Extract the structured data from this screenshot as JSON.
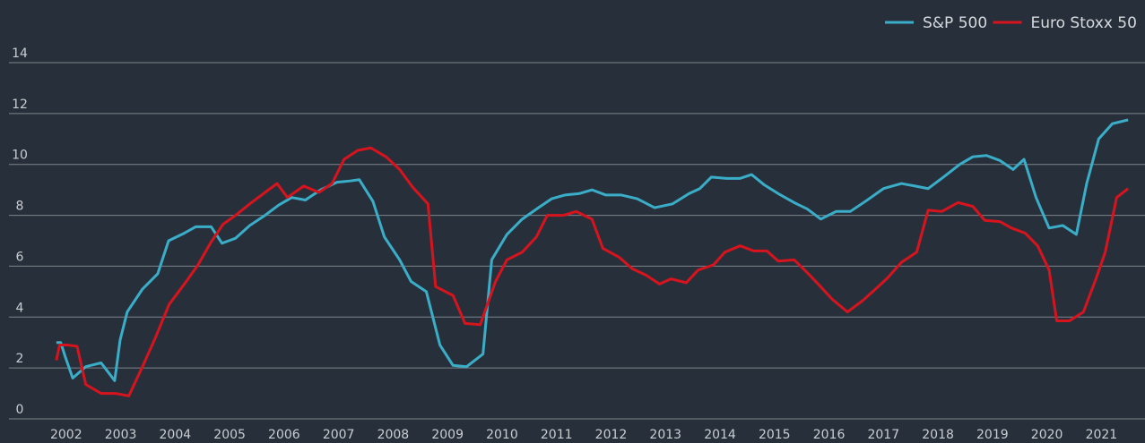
{
  "chart_data": {
    "type": "line",
    "xlim": [
      2000.95,
      2021.8
    ],
    "xticks": [
      2002,
      2003,
      2004,
      2005,
      2006,
      2007,
      2008,
      2009,
      2010,
      2011,
      2012,
      2013,
      2014,
      2015,
      2016,
      2017,
      2018,
      2019,
      2020,
      2021
    ],
    "ylim": [
      0,
      14
    ],
    "yticks": [
      0,
      2,
      4,
      6,
      8,
      10,
      12,
      14
    ],
    "grid": true,
    "legend": "top-right",
    "series": [
      {
        "name": "S&P 500",
        "color": "#3aaec8",
        "x": [
          2001.82,
          2001.9,
          2001.98,
          2002.12,
          2002.36,
          2002.64,
          2002.89,
          2002.99,
          2003.12,
          2003.4,
          2003.68,
          2003.88,
          2004.17,
          2004.38,
          2004.66,
          2004.86,
          2005.11,
          2005.37,
          2005.65,
          2005.9,
          2006.14,
          2006.39,
          2006.67,
          2006.97,
          2007.21,
          2007.38,
          2007.63,
          2007.84,
          2008.12,
          2008.33,
          2008.61,
          2008.86,
          2009.1,
          2009.35,
          2009.65,
          2009.81,
          2010.09,
          2010.37,
          2010.67,
          2010.91,
          2011.16,
          2011.41,
          2011.65,
          2011.9,
          2012.18,
          2012.48,
          2012.8,
          2013.13,
          2013.43,
          2013.63,
          2013.84,
          2014.12,
          2014.37,
          2014.58,
          2014.81,
          2015.07,
          2015.36,
          2015.6,
          2015.85,
          2016.13,
          2016.39,
          2016.67,
          2017.0,
          2017.33,
          2017.58,
          2017.82,
          2018.1,
          2018.4,
          2018.64,
          2018.89,
          2019.14,
          2019.38,
          2019.58,
          2019.8,
          2020.04,
          2020.29,
          2020.54,
          2020.73,
          2020.95,
          2021.2,
          2021.49
        ],
        "values": [
          3.0,
          3.0,
          2.46,
          1.6,
          2.05,
          2.2,
          1.5,
          3.1,
          4.2,
          5.1,
          5.7,
          7.0,
          7.3,
          7.55,
          7.55,
          6.9,
          7.1,
          7.6,
          8.0,
          8.4,
          8.7,
          8.6,
          9.0,
          9.3,
          9.35,
          9.4,
          8.55,
          7.15,
          6.25,
          5.4,
          5.0,
          2.9,
          2.1,
          2.05,
          2.55,
          6.25,
          7.25,
          7.85,
          8.3,
          8.65,
          8.8,
          8.85,
          9.0,
          8.8,
          8.8,
          8.65,
          8.3,
          8.45,
          8.85,
          9.05,
          9.5,
          9.45,
          9.45,
          9.6,
          9.2,
          8.85,
          8.5,
          8.25,
          7.85,
          8.15,
          8.15,
          8.55,
          9.05,
          9.25,
          9.15,
          9.05,
          9.5,
          10.0,
          10.3,
          10.35,
          10.15,
          9.8,
          10.2,
          8.7,
          7.5,
          7.6,
          7.25,
          9.25,
          11.0,
          11.6,
          11.75
        ]
      },
      {
        "name": "Euro Stoxx 50",
        "color": "#d7141e",
        "x": [
          2001.82,
          2001.88,
          2002.03,
          2002.2,
          2002.36,
          2002.64,
          2002.9,
          2003.15,
          2003.4,
          2003.63,
          2003.89,
          2004.17,
          2004.42,
          2004.66,
          2004.88,
          2005.11,
          2005.37,
          2005.65,
          2005.87,
          2006.06,
          2006.36,
          2006.64,
          2006.88,
          2007.1,
          2007.35,
          2007.59,
          2007.87,
          2008.12,
          2008.36,
          2008.64,
          2008.78,
          2009.1,
          2009.32,
          2009.6,
          2009.88,
          2010.09,
          2010.37,
          2010.63,
          2010.83,
          2011.13,
          2011.36,
          2011.65,
          2011.85,
          2012.15,
          2012.39,
          2012.64,
          2012.89,
          2013.1,
          2013.38,
          2013.6,
          2013.88,
          2014.09,
          2014.37,
          2014.62,
          2014.86,
          2015.07,
          2015.36,
          2015.6,
          2015.8,
          2016.06,
          2016.34,
          2016.62,
          2016.88,
          2017.08,
          2017.33,
          2017.61,
          2017.82,
          2018.07,
          2018.37,
          2018.64,
          2018.86,
          2019.14,
          2019.35,
          2019.6,
          2019.83,
          2020.04,
          2020.18,
          2020.41,
          2020.67,
          2020.9,
          2021.07,
          2021.28,
          2021.49
        ],
        "values": [
          2.3,
          2.9,
          2.9,
          2.85,
          1.35,
          1.0,
          1.0,
          0.9,
          2.05,
          3.15,
          4.5,
          5.3,
          6.05,
          6.95,
          7.65,
          8.0,
          8.45,
          8.9,
          9.25,
          8.7,
          9.15,
          8.9,
          9.25,
          10.2,
          10.55,
          10.65,
          10.3,
          9.8,
          9.1,
          8.45,
          5.2,
          4.85,
          3.75,
          3.7,
          5.4,
          6.25,
          6.55,
          7.15,
          8.0,
          8.0,
          8.15,
          7.85,
          6.7,
          6.35,
          5.9,
          5.65,
          5.3,
          5.5,
          5.35,
          5.85,
          6.05,
          6.55,
          6.8,
          6.6,
          6.6,
          6.2,
          6.25,
          5.75,
          5.3,
          4.7,
          4.2,
          4.65,
          5.15,
          5.55,
          6.15,
          6.55,
          8.2,
          8.15,
          8.5,
          8.35,
          7.8,
          7.75,
          7.5,
          7.3,
          6.8,
          5.85,
          3.85,
          3.85,
          4.2,
          5.5,
          6.55,
          8.7,
          9.05
        ]
      }
    ]
  }
}
